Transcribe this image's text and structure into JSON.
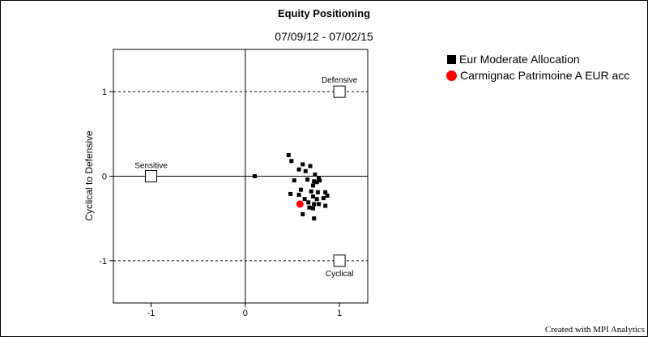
{
  "header": {
    "title": "Equity Positioning",
    "subtitle": "07/09/12 - 07/02/15"
  },
  "footer": "Created with MPI Analytics",
  "chart_data": {
    "type": "scatter",
    "title": "Equity Positioning",
    "subtitle": "07/09/12 - 07/02/15",
    "xlabel": "",
    "ylabel": "Cyclical to Defensive",
    "xlim": [
      -1.4,
      1.3
    ],
    "ylim": [
      -1.5,
      1.5
    ],
    "x_ticks": [
      -1,
      0,
      1
    ],
    "y_ticks": [
      -1,
      0,
      1
    ],
    "x_tick_labels": [
      "-1",
      "0",
      "1"
    ],
    "y_tick_labels": [
      "-1",
      "0",
      "1"
    ],
    "reference_lines": [
      {
        "orientation": "horizontal",
        "y": 1,
        "style": "dashed"
      },
      {
        "orientation": "horizontal",
        "y": -1,
        "style": "dashed"
      },
      {
        "orientation": "horizontal",
        "y": 0,
        "style": "solid"
      },
      {
        "orientation": "vertical",
        "x": 0,
        "style": "solid"
      }
    ],
    "anchors": [
      {
        "label": "Defensive",
        "x": 1,
        "y": 1
      },
      {
        "label": "Sensitive",
        "x": -1,
        "y": 0
      },
      {
        "label": "Cyclical",
        "x": 1,
        "y": -1
      }
    ],
    "legend_position": "top-right",
    "series": [
      {
        "name": "Eur Moderate Allocation",
        "marker": "square",
        "color": "#000000",
        "points": [
          {
            "x": 0.1,
            "y": 0.0
          },
          {
            "x": 0.46,
            "y": 0.25
          },
          {
            "x": 0.49,
            "y": 0.18
          },
          {
            "x": 0.61,
            "y": 0.14
          },
          {
            "x": 0.69,
            "y": 0.12
          },
          {
            "x": 0.57,
            "y": 0.08
          },
          {
            "x": 0.64,
            "y": 0.06
          },
          {
            "x": 0.74,
            "y": 0.02
          },
          {
            "x": 0.78,
            "y": -0.02
          },
          {
            "x": 0.52,
            "y": -0.05
          },
          {
            "x": 0.66,
            "y": -0.04
          },
          {
            "x": 0.73,
            "y": -0.06
          },
          {
            "x": 0.76,
            "y": -0.07
          },
          {
            "x": 0.79,
            "y": -0.05
          },
          {
            "x": 0.72,
            "y": -0.11
          },
          {
            "x": 0.59,
            "y": -0.16
          },
          {
            "x": 0.7,
            "y": -0.18
          },
          {
            "x": 0.77,
            "y": -0.19
          },
          {
            "x": 0.85,
            "y": -0.19
          },
          {
            "x": 0.48,
            "y": -0.21
          },
          {
            "x": 0.57,
            "y": -0.22
          },
          {
            "x": 0.63,
            "y": -0.27
          },
          {
            "x": 0.72,
            "y": -0.24
          },
          {
            "x": 0.87,
            "y": -0.23
          },
          {
            "x": 0.76,
            "y": -0.27
          },
          {
            "x": 0.83,
            "y": -0.26
          },
          {
            "x": 0.67,
            "y": -0.31
          },
          {
            "x": 0.73,
            "y": -0.33
          },
          {
            "x": 0.78,
            "y": -0.33
          },
          {
            "x": 0.68,
            "y": -0.37
          },
          {
            "x": 0.72,
            "y": -0.38
          },
          {
            "x": 0.85,
            "y": -0.35
          },
          {
            "x": 0.61,
            "y": -0.45
          },
          {
            "x": 0.73,
            "y": -0.5
          }
        ]
      },
      {
        "name": "Carmignac Patrimoine A EUR acc",
        "marker": "circle",
        "color": "#ff0000",
        "points": [
          {
            "x": 0.58,
            "y": -0.33
          }
        ]
      }
    ]
  }
}
